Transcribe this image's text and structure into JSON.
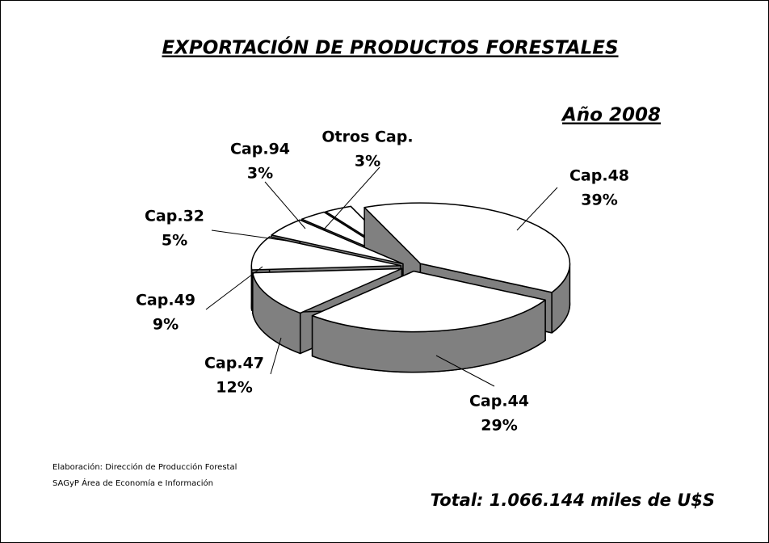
{
  "chart_data": {
    "type": "pie",
    "title": "EXPORTACIÓN DE PRODUCTOS FORESTALES",
    "subtitle": "Año 2008",
    "categories": [
      "Cap.48",
      "Cap.44",
      "Cap.47",
      "Cap.49",
      "Cap.32",
      "Cap.94",
      "Otros Cap."
    ],
    "values": [
      39,
      29,
      12,
      9,
      5,
      3,
      3
    ],
    "value_labels": [
      "39%",
      "29%",
      "12%",
      "9%",
      "5%",
      "3%",
      "3%"
    ],
    "color": "#ffffff",
    "side_color": "#808080",
    "notes": [
      "Elaboración: Dirección de Producción Forestal",
      "SAGyP Área de Economía e Información"
    ],
    "total": "Total: 1.066.144 miles de U$S"
  }
}
